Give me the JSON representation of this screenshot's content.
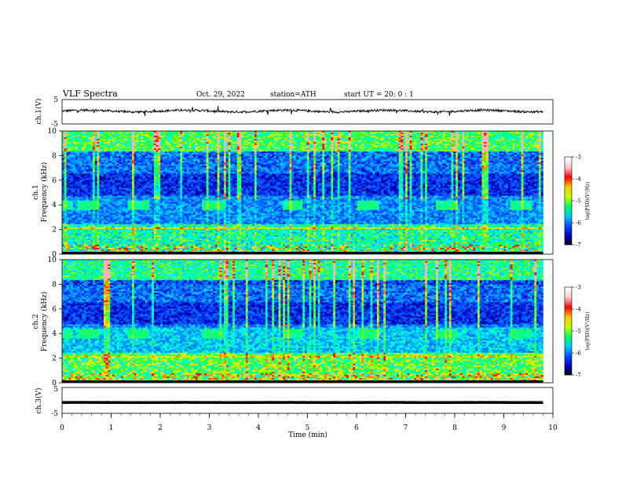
{
  "header": {
    "title": "VLF  Spectra",
    "date": "Oct. 29, 2022",
    "station": "station=ATH",
    "start": "start  UT  =   20: 0   : 1"
  },
  "colormap": [
    "#000000",
    "#0000c8",
    "#0050ff",
    "#00c8ff",
    "#00ff64",
    "#c8ff00",
    "#ffc800",
    "#ff0000",
    "#ffc8c8",
    "#ffffff"
  ],
  "chart_data": [
    {
      "type": "line",
      "name": "ch1-waveform",
      "ylabel": "ch.1(V)",
      "ylim": [
        -5,
        5
      ],
      "yticks": [
        "5",
        "-5"
      ],
      "xlim": [
        0,
        10
      ],
      "approx_level": 0.3,
      "grid": false
    },
    {
      "type": "heatmap",
      "name": "ch1-spectrogram",
      "ylabel_top": "ch.1",
      "ylabel": "Frequency  (kHz)",
      "ylim": [
        0,
        10
      ],
      "yticks": [
        0,
        2,
        4,
        6,
        8,
        10
      ],
      "xlim": [
        0,
        9.8
      ],
      "sferic_band_times_min": [
        0.0,
        0.52,
        1.52,
        3.05,
        4.68,
        6.22,
        7.82,
        9.35
      ],
      "colorbar": {
        "label": "log(PSD)(V²/Hz)",
        "range": [
          -7,
          -3
        ],
        "ticks": [
          "-3",
          "-4",
          "-5",
          "-6",
          "-7"
        ],
        "placement": "right"
      }
    },
    {
      "type": "heatmap",
      "name": "ch2-spectrogram",
      "ylabel_top": "ch.2",
      "ylabel": "Frequency  (kHz)",
      "ylim": [
        0,
        10
      ],
      "yticks": [
        0,
        2,
        4,
        6,
        8,
        10
      ],
      "xlim": [
        0,
        9.8
      ],
      "sferic_band_times_min": [
        0.0,
        0.52,
        1.52,
        3.05,
        4.68,
        6.22,
        7.82,
        9.35
      ],
      "colorbar": {
        "label": "log(PSD)(V²/Hz)",
        "range": [
          -7,
          -3
        ],
        "ticks": [
          "-3",
          "-4",
          "-5",
          "-6",
          "-7"
        ],
        "placement": "right"
      }
    },
    {
      "type": "line",
      "name": "ch3-waveform",
      "ylabel": "ch.3(V)",
      "ylim": [
        -5,
        5
      ],
      "yticks": [
        "5",
        "-5"
      ],
      "xlim": [
        0,
        10
      ],
      "approx_level": -0.8,
      "grid": false
    }
  ],
  "xaxis": {
    "label": "Time  (min)",
    "ticks": [
      "0",
      "1",
      "2",
      "3",
      "4",
      "5",
      "6",
      "7",
      "8",
      "9",
      "10"
    ],
    "range": [
      0,
      10
    ]
  }
}
